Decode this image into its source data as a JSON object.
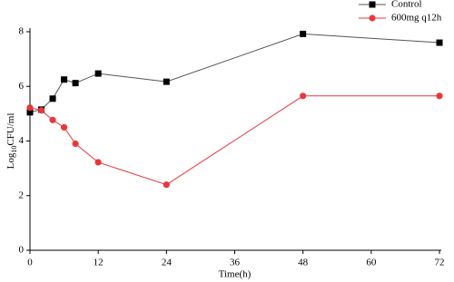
{
  "chart_data": {
    "type": "line",
    "x_label": "Time(h)",
    "y_label": [
      "Log",
      "10",
      "CFU/ml"
    ],
    "xlim": [
      0,
      72
    ],
    "xticks": [
      0,
      12,
      24,
      36,
      48,
      60,
      72
    ],
    "ylim": [
      0,
      8
    ],
    "yticks": [
      0,
      2,
      4,
      6,
      8
    ],
    "legend": "top-right",
    "x": [
      0,
      2,
      4,
      6,
      8,
      12,
      24,
      48,
      72
    ],
    "series": [
      {
        "name": "Control",
        "color": "#000000",
        "line_color": "#555555",
        "marker": "square",
        "values": [
          5.05,
          5.15,
          5.55,
          6.25,
          6.12,
          6.47,
          6.17,
          7.92,
          7.6
        ]
      },
      {
        "name": "600mg q12h",
        "color": "#e8383d",
        "line_color": "#e8383d",
        "marker": "circle",
        "values": [
          5.22,
          5.12,
          4.77,
          4.5,
          3.9,
          3.22,
          2.4,
          5.65,
          5.65
        ]
      }
    ]
  }
}
